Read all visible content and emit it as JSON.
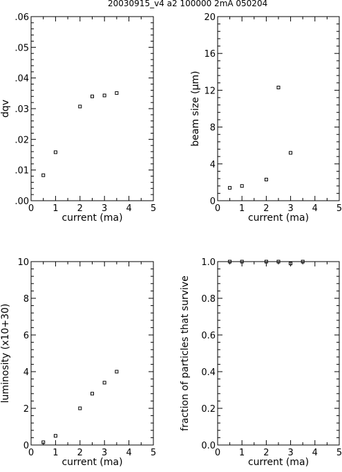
{
  "header": "20030915_v4    a2  100000  2mA  050204",
  "chart_data": [
    {
      "type": "scatter",
      "xlabel": "current (ma)",
      "ylabel": "dqv",
      "xlim": [
        0,
        5
      ],
      "ylim": [
        0,
        0.06
      ],
      "xticks": [
        "0",
        "1",
        "2",
        "3",
        "4",
        "5"
      ],
      "yticks": [
        ".00",
        ".01",
        ".02",
        ".03",
        ".04",
        ".05",
        ".06"
      ],
      "x": [
        0.5,
        1,
        2,
        2.5,
        3,
        3.5
      ],
      "y": [
        0.0083,
        0.0158,
        0.0307,
        0.034,
        0.0343,
        0.0351
      ]
    },
    {
      "type": "scatter",
      "xlabel": "current (ma)",
      "ylabel": "beam size (μm)",
      "xlim": [
        0,
        5
      ],
      "ylim": [
        0,
        20
      ],
      "xticks": [
        "0",
        "1",
        "2",
        "3",
        "4",
        "5"
      ],
      "yticks": [
        "0",
        "4",
        "8",
        "12",
        "16",
        "20"
      ],
      "x": [
        0.5,
        1,
        2,
        2.5,
        3
      ],
      "y": [
        1.4,
        1.6,
        2.3,
        12.3,
        5.2
      ]
    },
    {
      "type": "scatter",
      "xlabel": "current (ma)",
      "ylabel": "luminosity  (x10+30)",
      "xlim": [
        0,
        5
      ],
      "ylim": [
        0,
        10
      ],
      "xticks": [
        "0",
        "1",
        "2",
        "3",
        "4",
        "5"
      ],
      "yticks": [
        "0",
        "2",
        "4",
        "6",
        "8",
        "10"
      ],
      "x": [
        0.5,
        1,
        2,
        2.5,
        3,
        3.5
      ],
      "y": [
        0.15,
        0.5,
        2.0,
        2.8,
        3.4,
        4.0
      ]
    },
    {
      "type": "scatter",
      "xlabel": "current (ma)",
      "ylabel": "fraction of particles that survive",
      "xlim": [
        0,
        5
      ],
      "ylim": [
        0,
        1
      ],
      "xticks": [
        "0",
        "1",
        "2",
        "3",
        "4",
        "5"
      ],
      "yticks": [
        "0.0",
        "0.2",
        "0.4",
        "0.6",
        "0.8",
        "1.0"
      ],
      "x": [
        0.5,
        1,
        2,
        2.5,
        3,
        3.5
      ],
      "y": [
        1.0,
        1.0,
        1.0,
        1.0,
        0.99,
        1.0
      ]
    }
  ]
}
